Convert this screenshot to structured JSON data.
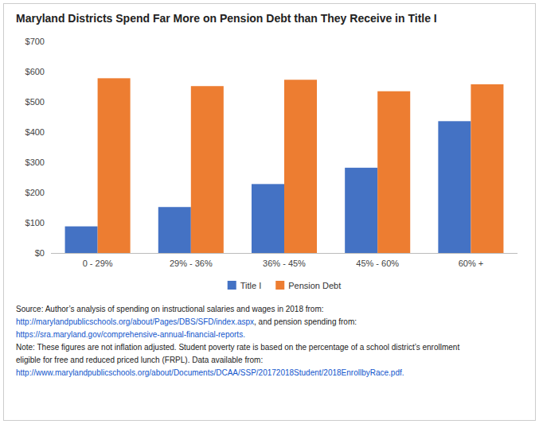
{
  "chart_data": {
    "type": "bar",
    "title": "Maryland Districts Spend Far More on Pension Debt than They Receive in Title I",
    "categories": [
      "0 - 29%",
      "29% - 36%",
      "36% - 45%",
      "45% - 60%",
      "60% +"
    ],
    "series": [
      {
        "name": "Title I",
        "color": "#4472C4",
        "values": [
          88,
          152,
          228,
          282,
          436
        ]
      },
      {
        "name": "Pension Debt",
        "color": "#ED7D31",
        "values": [
          578,
          552,
          573,
          535,
          558
        ]
      }
    ],
    "ylim": [
      0,
      700
    ],
    "yticks": [
      {
        "value": 0,
        "label": "$0"
      },
      {
        "value": 100,
        "label": "$100"
      },
      {
        "value": 200,
        "label": "$200"
      },
      {
        "value": 300,
        "label": "$300"
      },
      {
        "value": 400,
        "label": "$400"
      },
      {
        "value": 500,
        "label": "$500"
      },
      {
        "value": 600,
        "label": "$600"
      },
      {
        "value": 700,
        "label": "$700"
      }
    ],
    "grid": false,
    "legend": "bottom",
    "annotations": [
      [
        "Source: Author’s analysis of spending on instructional salaries and wages in 2018 from:"
      ],
      [
        "http://marylandpublicschools.org/about/Pages/DBS/SFD/index.aspx",
        ", and pension spending from:"
      ],
      [
        "https://sra.maryland.gov/comprehensive-annual-financial-reports."
      ],
      [
        "Note: These figures are not inflation adjusted. Student poverty rate is based on the percentage of a school district’s enrollment"
      ],
      [
        "eligible for free and reduced priced lunch (FRPL). Data available from:"
      ],
      [
        "http://www.marylandpublicschools.org/about/Documents/DCAA/SSP/20172018Student/2018EnrollbyRace.pdf."
      ]
    ]
  }
}
